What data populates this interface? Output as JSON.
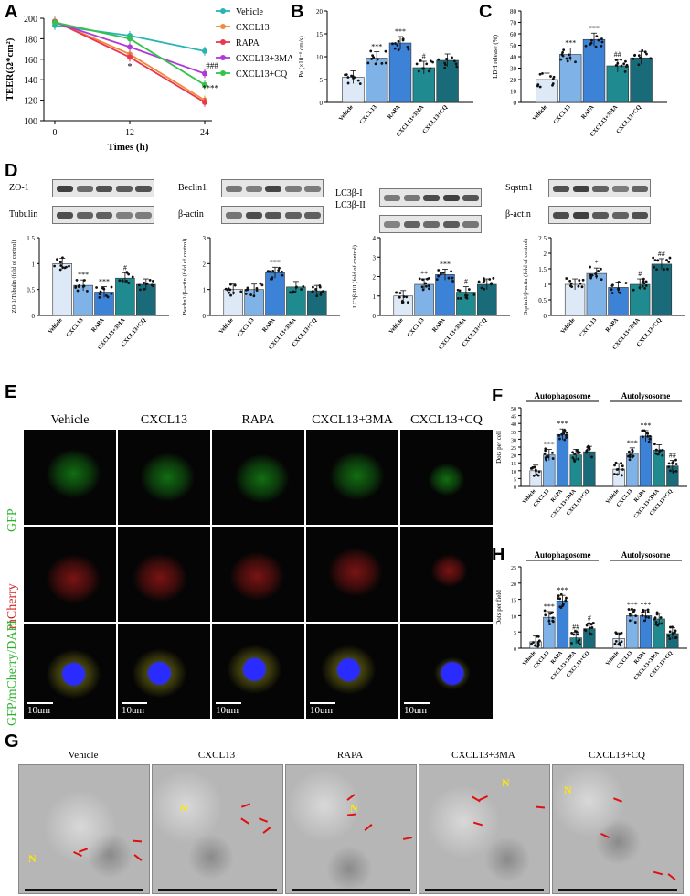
{
  "panels": {
    "A": "A",
    "B": "B",
    "C": "C",
    "D": "D",
    "E": "E",
    "F": "F",
    "G": "G",
    "H": "H"
  },
  "colors": {
    "vehicle": "#2ab3b3",
    "cxcl13": "#f08a3c",
    "rapa": "#e8384f",
    "cxcl13_3ma": "#b03ad6",
    "cxcl13_cq": "#33c24a",
    "bar_vehicle": "#dde9f7",
    "bar_cxcl13": "#7fb2e6",
    "bar_rapa": "#3c82d6",
    "bar_3ma": "#1f8a8f",
    "bar_cq": "#1a6b7a"
  },
  "chart_data": [
    {
      "id": "A",
      "type": "line",
      "x": [
        0,
        12,
        24
      ],
      "xlabel": "Times (h)",
      "ylabel": "TEER(Ω*cm²)",
      "ylim": [
        100,
        200
      ],
      "yticks": [
        100,
        120,
        140,
        160,
        180,
        200
      ],
      "series": [
        {
          "name": "Vehicle",
          "values": [
            193,
            183,
            168
          ]
        },
        {
          "name": "CXCL13",
          "values": [
            197,
            165,
            120
          ]
        },
        {
          "name": "RAPA",
          "values": [
            197,
            162,
            118
          ]
        },
        {
          "name": "CXCL13+3MA",
          "values": [
            196,
            172,
            146
          ]
        },
        {
          "name": "CXCL13+CQ",
          "values": [
            196,
            180,
            135
          ]
        }
      ],
      "annotations": [
        "*",
        "###",
        "****"
      ]
    },
    {
      "id": "B",
      "type": "bar",
      "categories": [
        "Vehicle",
        "CXCL13",
        "RAPA",
        "CXCL13+3MA",
        "CXCL13+CQ"
      ],
      "values": [
        5.5,
        9.7,
        13,
        7.6,
        9.2
      ],
      "ylabel": "Pe (×10⁻⁶ cm/s)",
      "ylim": [
        0,
        20
      ],
      "yticks": [
        0,
        5,
        10,
        15,
        20
      ],
      "sig": [
        "",
        "***",
        "***",
        "#",
        ""
      ]
    },
    {
      "id": "C",
      "type": "bar",
      "categories": [
        "Vehicle",
        "CXCL13",
        "RAPA",
        "CXCL13+3MA",
        "CXCL13+CQ"
      ],
      "values": [
        20,
        42,
        55,
        32,
        39
      ],
      "ylabel": "LDH release (%)",
      "ylim": [
        0,
        80
      ],
      "yticks": [
        0,
        10,
        20,
        30,
        40,
        50,
        60,
        70,
        80
      ],
      "sig": [
        "",
        "***",
        "***",
        "##",
        ""
      ]
    },
    {
      "id": "D1",
      "type": "bar",
      "categories": [
        "Vehicle",
        "CXCL13",
        "RAPA",
        "CXCL13+3MA",
        "CXCL13+CQ"
      ],
      "values": [
        1.0,
        0.58,
        0.45,
        0.72,
        0.6
      ],
      "ylabel": "ZO-1/Tubulin (fold of control)",
      "ylim": [
        0,
        1.5
      ],
      "yticks": [
        0,
        0.5,
        1.0,
        1.5
      ],
      "sig": [
        "",
        "***",
        "***",
        "#",
        ""
      ]
    },
    {
      "id": "D2",
      "type": "bar",
      "categories": [
        "Vehicle",
        "CXCL13",
        "RAPA",
        "CXCL13+3MA",
        "CXCL13+CQ"
      ],
      "values": [
        1.0,
        1.0,
        1.65,
        1.1,
        0.95
      ],
      "ylabel": "Beclin1/β-actin (fold of control)",
      "ylim": [
        0,
        3
      ],
      "yticks": [
        0,
        1,
        2,
        3
      ],
      "sig": [
        "",
        "",
        "***",
        "",
        ""
      ]
    },
    {
      "id": "D3",
      "type": "bar",
      "categories": [
        "Vehicle",
        "CXCL13",
        "RAPA",
        "CXCL13+3MA",
        "CXCL13+CQ"
      ],
      "values": [
        1.0,
        1.6,
        2.1,
        1.2,
        1.6
      ],
      "ylabel": "LC3β-II/I (fold of control)",
      "ylim": [
        0,
        4
      ],
      "yticks": [
        0,
        1,
        2,
        3,
        4
      ],
      "sig": [
        "",
        "**",
        "***",
        "#",
        ""
      ]
    },
    {
      "id": "D4",
      "type": "bar",
      "categories": [
        "Vehicle",
        "CXCL13",
        "RAPA",
        "CXCL13+3MA",
        "CXCL13+CQ"
      ],
      "values": [
        1.0,
        1.35,
        0.9,
        1.0,
        1.65
      ],
      "ylabel": "Sqstm1/β-actin (fold of control)",
      "ylim": [
        0,
        2.5
      ],
      "yticks": [
        0,
        0.5,
        1.0,
        1.5,
        2.0,
        2.5
      ],
      "sig": [
        "",
        "*",
        "",
        "#",
        "##"
      ]
    },
    {
      "id": "F",
      "type": "bar",
      "groups": [
        "Autophagosome",
        "Autolysosome"
      ],
      "categories": [
        "Vehicle",
        "CXCL13",
        "RAPA",
        "CXCL13+3MA",
        "CXCL13+CQ"
      ],
      "series": [
        {
          "name": "Autophagosome",
          "values": [
            10,
            20,
            33,
            20,
            22
          ]
        },
        {
          "name": "Autolysosome",
          "values": [
            11,
            21,
            32,
            23,
            13
          ]
        }
      ],
      "ylabel": "Dots per cell",
      "ylim": [
        0,
        50
      ],
      "yticks": [
        0,
        5,
        10,
        15,
        20,
        25,
        30,
        35,
        40,
        45,
        50
      ],
      "sig": [
        [
          "",
          "***",
          "***",
          "",
          ""
        ],
        [
          "",
          "***",
          "***",
          "",
          "##"
        ]
      ]
    },
    {
      "id": "H",
      "type": "bar",
      "groups": [
        "Autophagosome",
        "Autolysosome"
      ],
      "categories": [
        "Vehicle",
        "CXCL13",
        "RAPA",
        "CXCL13+3MA",
        "CXCL13+CQ"
      ],
      "series": [
        {
          "name": "Autophagosome",
          "values": [
            2,
            9.5,
            14.5,
            3.2,
            6
          ]
        },
        {
          "name": "Autolysosome",
          "values": [
            3,
            10,
            10,
            9,
            4.5
          ]
        }
      ],
      "ylabel": "Dots per field",
      "ylim": [
        0,
        25
      ],
      "yticks": [
        0,
        5,
        10,
        15,
        20,
        25
      ],
      "sig": [
        [
          "",
          "***",
          "***",
          "##",
          "#"
        ],
        [
          "",
          "***",
          "***",
          "",
          ""
        ]
      ]
    }
  ],
  "western": [
    {
      "bands": [
        "ZO-1",
        "Tubulin"
      ]
    },
    {
      "bands": [
        "Beclin1",
        "β-actin"
      ]
    },
    {
      "bands": [
        "LC3β-I",
        "LC3β-II"
      ]
    },
    {
      "bands": [
        "Sqstm1",
        "β-actin"
      ]
    }
  ],
  "panelE": {
    "columns": [
      "Vehicle",
      "CXCL13",
      "RAPA",
      "CXCL13+3MA",
      "CXCL13+CQ"
    ],
    "rows": [
      "GFP",
      "mCherry",
      "GFP/mCherry/DAPI"
    ],
    "scale": "10um"
  },
  "panelG": {
    "columns": [
      "Vehicle",
      "CXCL13",
      "RAPA",
      "CXCL13+3MA",
      "CXCL13+CQ"
    ],
    "nucleus_label": "N"
  }
}
